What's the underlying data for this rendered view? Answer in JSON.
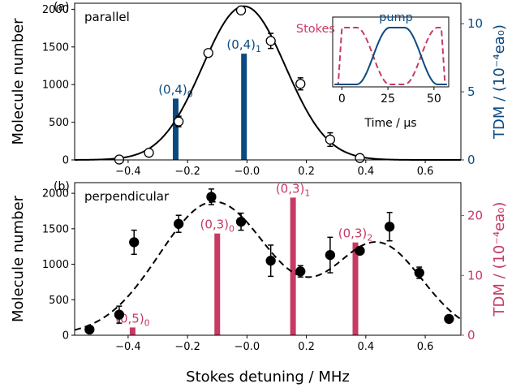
{
  "colors": {
    "blue": "#0b4a80",
    "pink": "#c73a63",
    "black": "#000000"
  },
  "chart_data": [
    {
      "panel_label": "(a)",
      "type": "scatter",
      "annotation": "parallel",
      "xlim": [
        -0.58,
        0.72
      ],
      "ylim": [
        0,
        2080
      ],
      "yticks": [
        0,
        500,
        1000,
        1500,
        2000
      ],
      "ylabel": "Molecule number",
      "y2lim": [
        0,
        11.5
      ],
      "y2ticks": [
        0,
        5,
        10
      ],
      "y2label": "TDM / (10⁻⁴ea₀)",
      "y2color": "#0b4a80",
      "xticks": [
        -0.4,
        -0.2,
        0.0,
        0.2,
        0.4,
        0.6
      ],
      "xticklabels": [
        "−0.4",
        "−0.2",
        "−0.0",
        "0.2",
        "0.4",
        "0.6"
      ],
      "points": [
        {
          "x": -0.43,
          "y": 5,
          "err": 0
        },
        {
          "x": -0.33,
          "y": 95,
          "err": 0
        },
        {
          "x": -0.23,
          "y": 510,
          "err": 70
        },
        {
          "x": -0.13,
          "y": 1420,
          "err": 0
        },
        {
          "x": -0.02,
          "y": 1985,
          "err": 40
        },
        {
          "x": 0.08,
          "y": 1580,
          "err": 100
        },
        {
          "x": 0.18,
          "y": 1010,
          "err": 80
        },
        {
          "x": 0.28,
          "y": 270,
          "err": 90
        },
        {
          "x": 0.38,
          "y": 25,
          "err": 0
        }
      ],
      "fit": {
        "style": "solid",
        "amplitude": 2040,
        "center": -0.01,
        "sigma": 0.14,
        "baseline": 0
      },
      "bars": [
        {
          "x": -0.24,
          "tdm": 4.5,
          "label": "(0,4)",
          "sub": "0"
        },
        {
          "x": -0.01,
          "tdm": 7.8,
          "label": "(0,4)",
          "sub": "1"
        }
      ],
      "inset": {
        "xlabel": "Time / μs",
        "xticks": [
          0,
          25,
          50
        ],
        "xlim": [
          -5,
          58
        ],
        "series": [
          {
            "name": "Stokes",
            "color": "#c73a63",
            "style": "dashed"
          },
          {
            "name": "pump",
            "color": "#0b4a80",
            "style": "solid"
          }
        ]
      }
    },
    {
      "panel_label": "(b)",
      "type": "scatter",
      "annotation": "perpendicular",
      "xlim": [
        -0.58,
        0.72
      ],
      "ylim": [
        0,
        2150
      ],
      "yticks": [
        0,
        500,
        1000,
        1500,
        2000
      ],
      "ylabel": "Molecule number",
      "y2lim": [
        0,
        25.5
      ],
      "y2ticks": [
        0,
        10,
        20
      ],
      "y2label": "TDM / (10⁻⁴ea₀)",
      "y2color": "#c73a63",
      "xlabel": "Stokes detuning / MHz",
      "xticks": [
        -0.4,
        -0.2,
        0.0,
        0.2,
        0.4,
        0.6
      ],
      "xticklabels": [
        "−0.4",
        "−0.2",
        "−0.0",
        "0.2",
        "0.4",
        "0.6"
      ],
      "points": [
        {
          "x": -0.53,
          "y": 80,
          "err": 0
        },
        {
          "x": -0.43,
          "y": 290,
          "err": 120
        },
        {
          "x": -0.38,
          "y": 1310,
          "err": 170
        },
        {
          "x": -0.23,
          "y": 1570,
          "err": 120
        },
        {
          "x": -0.12,
          "y": 1950,
          "err": 110
        },
        {
          "x": -0.02,
          "y": 1600,
          "err": 120
        },
        {
          "x": 0.08,
          "y": 1050,
          "err": 220
        },
        {
          "x": 0.18,
          "y": 900,
          "err": 80
        },
        {
          "x": 0.28,
          "y": 1130,
          "err": 250
        },
        {
          "x": 0.38,
          "y": 1190,
          "err": 50
        },
        {
          "x": 0.48,
          "y": 1530,
          "err": 200
        },
        {
          "x": 0.58,
          "y": 880,
          "err": 80
        },
        {
          "x": 0.68,
          "y": 230,
          "err": 0
        }
      ],
      "fit": {
        "style": "dashed",
        "baseline": 0,
        "components": [
          {
            "amplitude": 1880,
            "center": -0.11,
            "sigma": 0.185
          },
          {
            "amplitude": 1290,
            "center": 0.44,
            "sigma": 0.15
          }
        ]
      },
      "bars": [
        {
          "x": -0.385,
          "tdm": 1.3,
          "label": "(0,5)",
          "sub": "0"
        },
        {
          "x": -0.1,
          "tdm": 17.0,
          "label": "(0,3)",
          "sub": "0"
        },
        {
          "x": 0.155,
          "tdm": 23.0,
          "label": "(0,3)",
          "sub": "1"
        },
        {
          "x": 0.365,
          "tdm": 15.5,
          "label": "(0,3)",
          "sub": "2"
        }
      ]
    }
  ]
}
